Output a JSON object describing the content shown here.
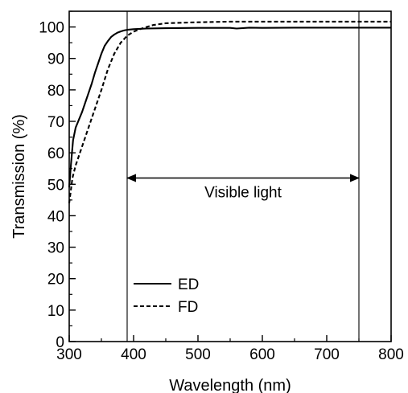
{
  "chart_data": {
    "type": "line",
    "title": "",
    "xlabel": "Wavelength (nm)",
    "ylabel": "Transmission (%)",
    "xlim": [
      300,
      800
    ],
    "ylim": [
      0,
      105
    ],
    "xticks": [
      300,
      400,
      500,
      600,
      700,
      800
    ],
    "yticks": [
      0,
      10,
      20,
      30,
      40,
      50,
      60,
      70,
      80,
      90,
      100
    ],
    "grid": false,
    "legend_position": "bottom-left",
    "series": [
      {
        "name": "ED",
        "line_style": "solid",
        "color": "#000000",
        "x": [
          300,
          303,
          306,
          310,
          315,
          320,
          325,
          330,
          335,
          340,
          345,
          350,
          355,
          360,
          365,
          370,
          375,
          380,
          385,
          390,
          400,
          420,
          450,
          500,
          550,
          560,
          580,
          600,
          650,
          700,
          750,
          800
        ],
        "y": [
          49,
          57,
          64,
          68,
          70.5,
          73,
          76,
          79,
          82,
          85.5,
          88.5,
          91.5,
          94,
          95.5,
          96.8,
          97.6,
          98.2,
          98.6,
          98.9,
          99.1,
          99.3,
          99.5,
          99.6,
          99.7,
          99.7,
          99.5,
          99.8,
          99.7,
          99.8,
          99.8,
          99.8,
          99.8
        ]
      },
      {
        "name": "FD",
        "line_style": "dashed",
        "color": "#000000",
        "x": [
          300,
          305,
          310,
          315,
          320,
          330,
          340,
          350,
          360,
          370,
          380,
          390,
          400,
          410,
          420,
          430,
          450,
          500,
          550,
          600,
          650,
          700,
          750,
          800
        ],
        "y": [
          44,
          52,
          56,
          59,
          62,
          68,
          74,
          80,
          86.5,
          91.5,
          95,
          97.2,
          98.5,
          99.3,
          100,
          100.6,
          101.2,
          101.5,
          101.7,
          101.7,
          101.7,
          101.7,
          101.7,
          101.7
        ]
      }
    ],
    "vertical_lines": [
      390,
      750
    ],
    "annotations": [
      {
        "text": "Visible light",
        "type": "double-arrow",
        "x_from": 390,
        "x_to": 750,
        "y": 52
      }
    ]
  }
}
